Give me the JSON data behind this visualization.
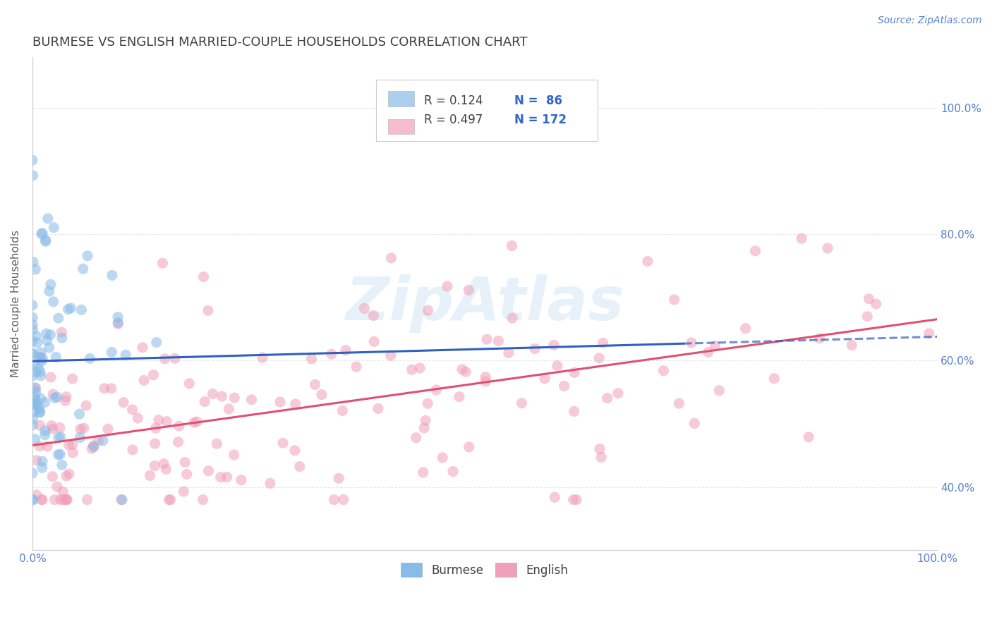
{
  "title": "BURMESE VS ENGLISH MARRIED-COUPLE HOUSEHOLDS CORRELATION CHART",
  "source_text": "Source: ZipAtlas.com",
  "ylabel": "Married-couple Households",
  "xlim": [
    0.0,
    1.0
  ],
  "ylim": [
    0.3,
    1.08
  ],
  "xtick_positions": [
    0.0,
    1.0
  ],
  "xtick_labels": [
    "0.0%",
    "100.0%"
  ],
  "ytick_positions": [
    0.4,
    0.6,
    0.8,
    1.0
  ],
  "ytick_labels": [
    "40.0%",
    "60.0%",
    "80.0%",
    "100.0%"
  ],
  "burmese_color": "#88bbe8",
  "burmese_edge_color": "#88bbe8",
  "english_color": "#f0a0b8",
  "english_edge_color": "#f0a0b8",
  "burmese_line_color": "#3060c0",
  "english_line_color": "#e05070",
  "tick_color": "#5580cc",
  "grid_color": "#e8e8e8",
  "background_color": "#ffffff",
  "title_color": "#404040",
  "title_fontsize": 13,
  "label_fontsize": 11,
  "tick_fontsize": 11,
  "source_fontsize": 10,
  "watermark_text": "ZipAtlas",
  "watermark_color": "#b8d8f0",
  "watermark_alpha": 0.35,
  "legend_R1": "R = 0.124",
  "legend_N1": "N =  86",
  "legend_R2": "R = 0.497",
  "legend_N2": "N = 172",
  "burmese_N": 86,
  "english_N": 172,
  "burmese_R": 0.124,
  "english_R": 0.497,
  "scatter_size": 120,
  "scatter_alpha": 0.55,
  "burmese_seed": 7,
  "english_seed": 99,
  "line_width": 2.2
}
